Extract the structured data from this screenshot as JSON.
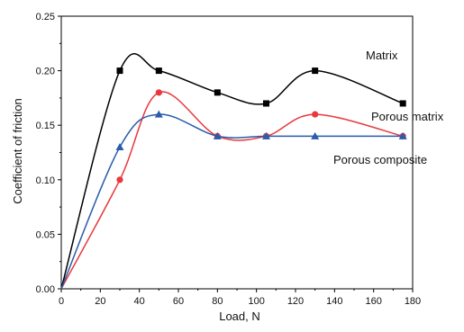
{
  "chart_data": {
    "type": "line",
    "title": "",
    "xlabel": "Load, N",
    "ylabel": "Coefficient of friction",
    "xlim": [
      0,
      180
    ],
    "ylim": [
      0,
      0.25
    ],
    "x_ticks": [
      "0",
      "20",
      "40",
      "60",
      "80",
      "100",
      "120",
      "140",
      "160",
      "180"
    ],
    "y_ticks": [
      "0.00",
      "0.05",
      "0.10",
      "0.15",
      "0.20",
      "0.25"
    ],
    "grid": false,
    "legend": "inline labels",
    "series": [
      {
        "name": "Matrix",
        "color": "#000000",
        "marker": "square",
        "x": [
          0,
          30,
          50,
          80,
          105,
          130,
          175
        ],
        "y": [
          0.0,
          0.2,
          0.2,
          0.18,
          0.17,
          0.2,
          0.17
        ]
      },
      {
        "name": "Porous matrix",
        "color": "#e8383d",
        "marker": "circle",
        "x": [
          0,
          30,
          50,
          80,
          105,
          130,
          175
        ],
        "y": [
          0.0,
          0.1,
          0.18,
          0.14,
          0.14,
          0.16,
          0.14
        ]
      },
      {
        "name": "Porous composite",
        "color": "#2a5caa",
        "marker": "triangle",
        "x": [
          0,
          30,
          50,
          80,
          105,
          130,
          175
        ],
        "y": [
          0.0,
          0.13,
          0.16,
          0.14,
          0.14,
          0.14,
          0.14
        ]
      }
    ]
  }
}
